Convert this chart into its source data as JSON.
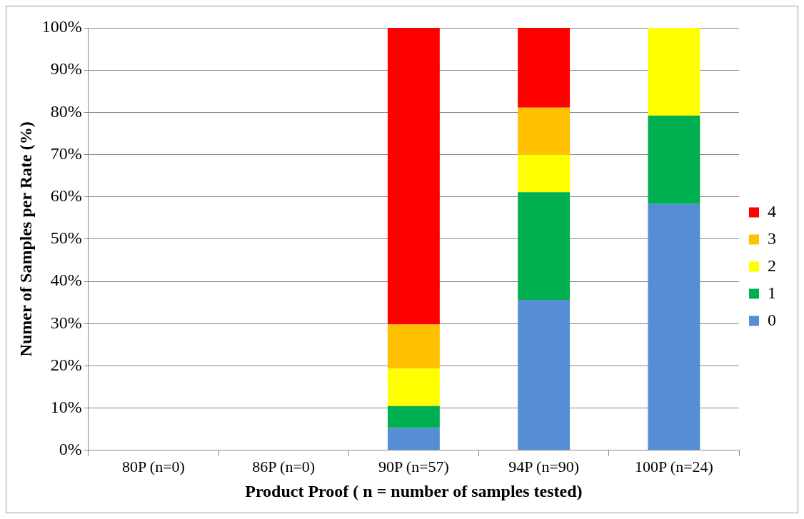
{
  "chart_data": {
    "type": "bar",
    "stacked": true,
    "xlabel": "Product Proof ( n = number of samples tested)",
    "ylabel": "Numer of Samples per Rate (%)",
    "categories": [
      "80P (n=0)",
      "86P (n=0)",
      "90P (n=57)",
      "94P (n=90)",
      "100P (n=24)"
    ],
    "series": [
      {
        "name": "0",
        "color": "#558ed5",
        "values": [
          0,
          0,
          5.3,
          35.6,
          58.3
        ]
      },
      {
        "name": "1",
        "color": "#00b050",
        "values": [
          0,
          0,
          5.2,
          25.5,
          20.9
        ]
      },
      {
        "name": "2",
        "color": "#ffff00",
        "values": [
          0,
          0,
          8.8,
          8.9,
          20.8
        ]
      },
      {
        "name": "3",
        "color": "#ffc000",
        "values": [
          0,
          0,
          10.5,
          11.1,
          0
        ]
      },
      {
        "name": "4",
        "color": "#ff0000",
        "values": [
          0,
          0,
          70.2,
          18.9,
          0
        ]
      }
    ],
    "ylim": [
      0,
      100
    ],
    "yticks": [
      {
        "value": 0,
        "label": "0%"
      },
      {
        "value": 10,
        "label": "10%"
      },
      {
        "value": 20,
        "label": "20%"
      },
      {
        "value": 30,
        "label": "30%"
      },
      {
        "value": 40,
        "label": "40%"
      },
      {
        "value": 50,
        "label": "50%"
      },
      {
        "value": 60,
        "label": "60%"
      },
      {
        "value": 70,
        "label": "70%"
      },
      {
        "value": 80,
        "label": "80%"
      },
      {
        "value": 90,
        "label": "90%"
      },
      {
        "value": 100,
        "label": "100%"
      }
    ],
    "grid": "y",
    "legend": "right"
  }
}
